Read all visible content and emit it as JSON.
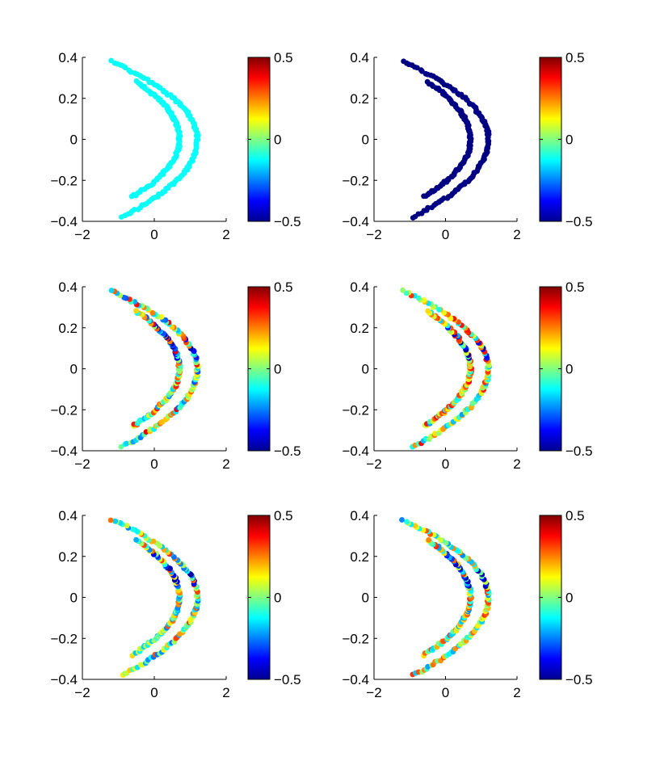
{
  "figure": {
    "grid": "3x2",
    "colormap": "jet",
    "colorbar_ticks": [
      "0.5",
      "0",
      "−0.5"
    ],
    "colorbar_range": [
      -0.5,
      0.5
    ]
  },
  "chart_data": [
    {
      "type": "scatter",
      "panel": "top-left",
      "xlim": [
        -2,
        2
      ],
      "ylim": [
        -0.4,
        0.4
      ],
      "xticks": [
        "−2",
        "0",
        "2"
      ],
      "yticks": [
        "0.4",
        "0.2",
        "0",
        "−0.2",
        "−0.4"
      ],
      "grid": false,
      "color_pattern": "uniform",
      "color_value": -0.12,
      "curves": [
        {
          "vertex_x": 1.2,
          "end_x_top": -1.2,
          "end_y_top": 0.38,
          "end_x_bottom": -0.9,
          "end_y_bottom": -0.38
        },
        {
          "vertex_x": 0.7,
          "end_x_top": -0.5,
          "end_y_top": 0.28,
          "end_x_bottom": -0.6,
          "end_y_bottom": -0.28
        }
      ]
    },
    {
      "type": "scatter",
      "panel": "top-right",
      "xlim": [
        -2,
        2
      ],
      "ylim": [
        -0.4,
        0.4
      ],
      "xticks": [
        "−2",
        "0",
        "2"
      ],
      "yticks": [
        "0.4",
        "0.2",
        "0",
        "−0.2",
        "−0.4"
      ],
      "grid": false,
      "color_pattern": "uniform",
      "color_value": -0.5,
      "curves": [
        {
          "vertex_x": 1.2,
          "end_x_top": -1.2,
          "end_y_top": 0.38,
          "end_x_bottom": -0.9,
          "end_y_bottom": -0.38
        },
        {
          "vertex_x": 0.7,
          "end_x_top": -0.5,
          "end_y_top": 0.28,
          "end_x_bottom": -0.6,
          "end_y_bottom": -0.28
        }
      ]
    },
    {
      "type": "scatter",
      "panel": "middle-left",
      "xlim": [
        -2,
        2
      ],
      "ylim": [
        -0.4,
        0.4
      ],
      "xticks": [
        "−2",
        "0",
        "2"
      ],
      "yticks": [
        "0.4",
        "0.2",
        "0",
        "−0.2",
        "−0.4"
      ],
      "grid": false,
      "color_pattern": "mixed",
      "color_mean": 0.05,
      "color_spread": 0.35,
      "curves": [
        {
          "vertex_x": 1.2,
          "end_x_top": -1.2,
          "end_y_top": 0.38,
          "end_x_bottom": -0.9,
          "end_y_bottom": -0.38
        },
        {
          "vertex_x": 0.7,
          "end_x_top": -0.5,
          "end_y_top": 0.28,
          "end_x_bottom": -0.6,
          "end_y_bottom": -0.28
        }
      ]
    },
    {
      "type": "scatter",
      "panel": "middle-right",
      "xlim": [
        -2,
        2
      ],
      "ylim": [
        -0.4,
        0.4
      ],
      "xticks": [
        "−2",
        "0",
        "2"
      ],
      "yticks": [
        "0.4",
        "0.2",
        "0",
        "−0.2",
        "−0.4"
      ],
      "grid": false,
      "color_pattern": "mixed",
      "color_mean": 0.08,
      "color_spread": 0.3,
      "curves": [
        {
          "vertex_x": 1.2,
          "end_x_top": -1.2,
          "end_y_top": 0.38,
          "end_x_bottom": -0.9,
          "end_y_bottom": -0.38
        },
        {
          "vertex_x": 0.7,
          "end_x_top": -0.5,
          "end_y_top": 0.28,
          "end_x_bottom": -0.6,
          "end_y_bottom": -0.28
        }
      ]
    },
    {
      "type": "scatter",
      "panel": "bottom-left",
      "xlim": [
        -2,
        2
      ],
      "ylim": [
        -0.4,
        0.4
      ],
      "xticks": [
        "−2",
        "0",
        "2"
      ],
      "yticks": [
        "0.4",
        "0.2",
        "0",
        "−0.2",
        "−0.4"
      ],
      "grid": false,
      "color_pattern": "mixed",
      "color_mean": 0.03,
      "color_spread": 0.3,
      "curves": [
        {
          "vertex_x": 1.2,
          "end_x_top": -1.2,
          "end_y_top": 0.38,
          "end_x_bottom": -0.9,
          "end_y_bottom": -0.38
        },
        {
          "vertex_x": 0.7,
          "end_x_top": -0.5,
          "end_y_top": 0.28,
          "end_x_bottom": -0.6,
          "end_y_bottom": -0.28
        }
      ]
    },
    {
      "type": "scatter",
      "panel": "bottom-right",
      "xlim": [
        -2,
        2
      ],
      "ylim": [
        -0.4,
        0.4
      ],
      "xticks": [
        "−2",
        "0",
        "2"
      ],
      "yticks": [
        "0.4",
        "0.2",
        "0",
        "−0.2",
        "−0.4"
      ],
      "grid": false,
      "color_pattern": "mixed",
      "color_mean": 0.05,
      "color_spread": 0.3,
      "curves": [
        {
          "vertex_x": 1.2,
          "end_x_top": -1.2,
          "end_y_top": 0.38,
          "end_x_bottom": -0.9,
          "end_y_bottom": -0.38
        },
        {
          "vertex_x": 0.7,
          "end_x_top": -0.5,
          "end_y_top": 0.28,
          "end_x_bottom": -0.6,
          "end_y_bottom": -0.28
        }
      ]
    }
  ]
}
